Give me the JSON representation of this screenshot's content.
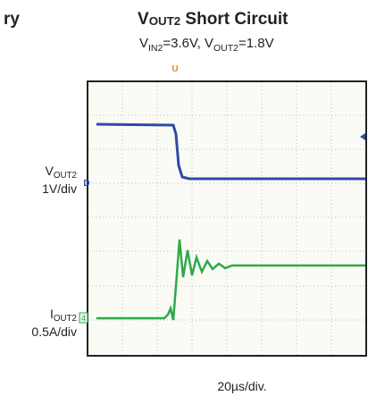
{
  "header": {
    "cropped_title": "ry",
    "title": [
      "V",
      "OUT2",
      " Short Circuit"
    ],
    "subtitle": [
      "V",
      "IN2",
      "=3.6V, V",
      "OUT2",
      "=1.8V"
    ]
  },
  "scope": {
    "channels": [
      {
        "name": [
          "V",
          "OUT2"
        ],
        "scale": "1V/div",
        "marker": "D"
      },
      {
        "name": [
          "I",
          "OUT2"
        ],
        "scale": "0.5A/div",
        "marker": "4"
      }
    ],
    "trigger_marker": "U",
    "timebase": "20µs/div."
  }
}
